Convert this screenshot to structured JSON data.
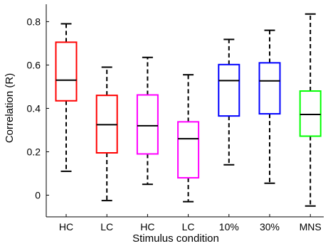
{
  "chart_data": {
    "type": "boxplot",
    "xlabel": "Stimulus condition",
    "ylabel": "Correlation (R)",
    "ylim": [
      -0.1,
      0.88
    ],
    "yticks": [
      0,
      0.2,
      0.4,
      0.6,
      0.8
    ],
    "ytick_labels": [
      "0",
      "0.2",
      "0.4",
      "0.6",
      "0.8"
    ],
    "categories": [
      "HC",
      "LC",
      "HC",
      "LC",
      "10%",
      "30%",
      "MNS"
    ],
    "boxes": [
      {
        "category": "HC",
        "color": "#ff0000",
        "whisker_low": 0.11,
        "q1": 0.435,
        "median": 0.53,
        "q3": 0.705,
        "whisker_high": 0.79
      },
      {
        "category": "LC",
        "color": "#ff0000",
        "whisker_low": -0.025,
        "q1": 0.195,
        "median": 0.325,
        "q3": 0.46,
        "whisker_high": 0.59
      },
      {
        "category": "HC",
        "color": "#ff00ff",
        "whisker_low": 0.05,
        "q1": 0.19,
        "median": 0.32,
        "q3": 0.462,
        "whisker_high": 0.635
      },
      {
        "category": "LC",
        "color": "#ff00ff",
        "whisker_low": -0.03,
        "q1": 0.08,
        "median": 0.26,
        "q3": 0.338,
        "whisker_high": 0.555
      },
      {
        "category": "10%",
        "color": "#0000ff",
        "whisker_low": 0.14,
        "q1": 0.365,
        "median": 0.528,
        "q3": 0.602,
        "whisker_high": 0.718
      },
      {
        "category": "30%",
        "color": "#0000ff",
        "whisker_low": 0.055,
        "q1": 0.375,
        "median": 0.527,
        "q3": 0.61,
        "whisker_high": 0.76
      },
      {
        "category": "MNS",
        "color": "#00ff00",
        "whisker_low": -0.05,
        "q1": 0.272,
        "median": 0.372,
        "q3": 0.48,
        "whisker_high": 0.835
      }
    ],
    "median_color": "#000000",
    "whisker_color": "#000000",
    "whisker_style": "dashed",
    "grid": false,
    "legend": false
  }
}
